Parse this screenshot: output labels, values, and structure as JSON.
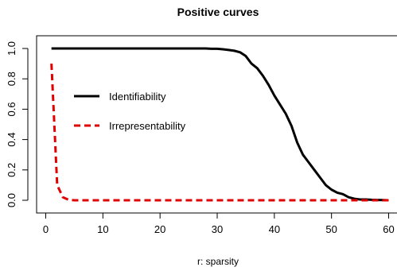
{
  "chart_data": {
    "type": "line",
    "title": "Positive curves",
    "xlabel": "r: sparsity",
    "ylabel": "",
    "xlim": [
      0,
      60
    ],
    "ylim": [
      0,
      1
    ],
    "x_ticks": [
      0,
      10,
      20,
      30,
      40,
      50,
      60
    ],
    "y_ticks": [
      0.0,
      0.2,
      0.4,
      0.6,
      0.8,
      1.0
    ],
    "x_tick_labels": [
      "0",
      "10",
      "20",
      "30",
      "40",
      "50",
      "60"
    ],
    "y_tick_labels": [
      "0.0",
      "0.2",
      "0.4",
      "0.6",
      "0.8",
      "1.0"
    ],
    "grid": false,
    "legend_position": "left",
    "series": [
      {
        "name": "Identifiability",
        "color": "#000000",
        "style": "solid",
        "x": [
          1,
          2,
          3,
          4,
          5,
          6,
          7,
          8,
          9,
          10,
          11,
          12,
          13,
          14,
          15,
          16,
          17,
          18,
          19,
          20,
          21,
          22,
          23,
          24,
          25,
          26,
          27,
          28,
          29,
          30,
          31,
          32,
          33,
          34,
          35,
          36,
          37,
          38,
          39,
          40,
          41,
          42,
          43,
          44,
          45,
          46,
          47,
          48,
          49,
          50,
          51,
          52,
          53,
          54,
          55,
          56,
          57,
          58,
          59,
          60
        ],
        "y": [
          1,
          1,
          1,
          1,
          1,
          1,
          1,
          1,
          1,
          1,
          1,
          1,
          1,
          1,
          1,
          1,
          1,
          1,
          1,
          1,
          1,
          1,
          1,
          1,
          1,
          1,
          1,
          1,
          0.998,
          0.998,
          0.995,
          0.99,
          0.985,
          0.975,
          0.95,
          0.9,
          0.87,
          0.82,
          0.76,
          0.69,
          0.63,
          0.57,
          0.49,
          0.38,
          0.3,
          0.25,
          0.2,
          0.15,
          0.1,
          0.07,
          0.05,
          0.04,
          0.02,
          0.01,
          0.005,
          0.005,
          0.003,
          0.002,
          0.001,
          0
        ]
      },
      {
        "name": "Irrepresentability",
        "color": "#e00000",
        "style": "dashed",
        "x": [
          1,
          2,
          3,
          4,
          5,
          6,
          7,
          8,
          9,
          10,
          11,
          12,
          13,
          14,
          15,
          16,
          17,
          18,
          19,
          20,
          21,
          22,
          23,
          24,
          25,
          26,
          27,
          28,
          29,
          30,
          31,
          32,
          33,
          34,
          35,
          36,
          37,
          38,
          39,
          40,
          41,
          42,
          43,
          44,
          45,
          46,
          47,
          48,
          49,
          50,
          51,
          52,
          53,
          54,
          55,
          56,
          57,
          58,
          59,
          60
        ],
        "y": [
          0.9,
          0.1,
          0.02,
          0.003,
          0,
          0,
          0,
          0,
          0,
          0,
          0,
          0,
          0,
          0,
          0,
          0,
          0,
          0,
          0,
          0,
          0,
          0,
          0,
          0,
          0,
          0,
          0,
          0,
          0,
          0,
          0,
          0,
          0,
          0,
          0,
          0,
          0,
          0,
          0,
          0,
          0,
          0,
          0,
          0,
          0,
          0,
          0,
          0,
          0,
          0,
          0,
          0,
          0,
          0,
          0,
          0,
          0,
          0,
          0,
          0
        ]
      }
    ]
  }
}
